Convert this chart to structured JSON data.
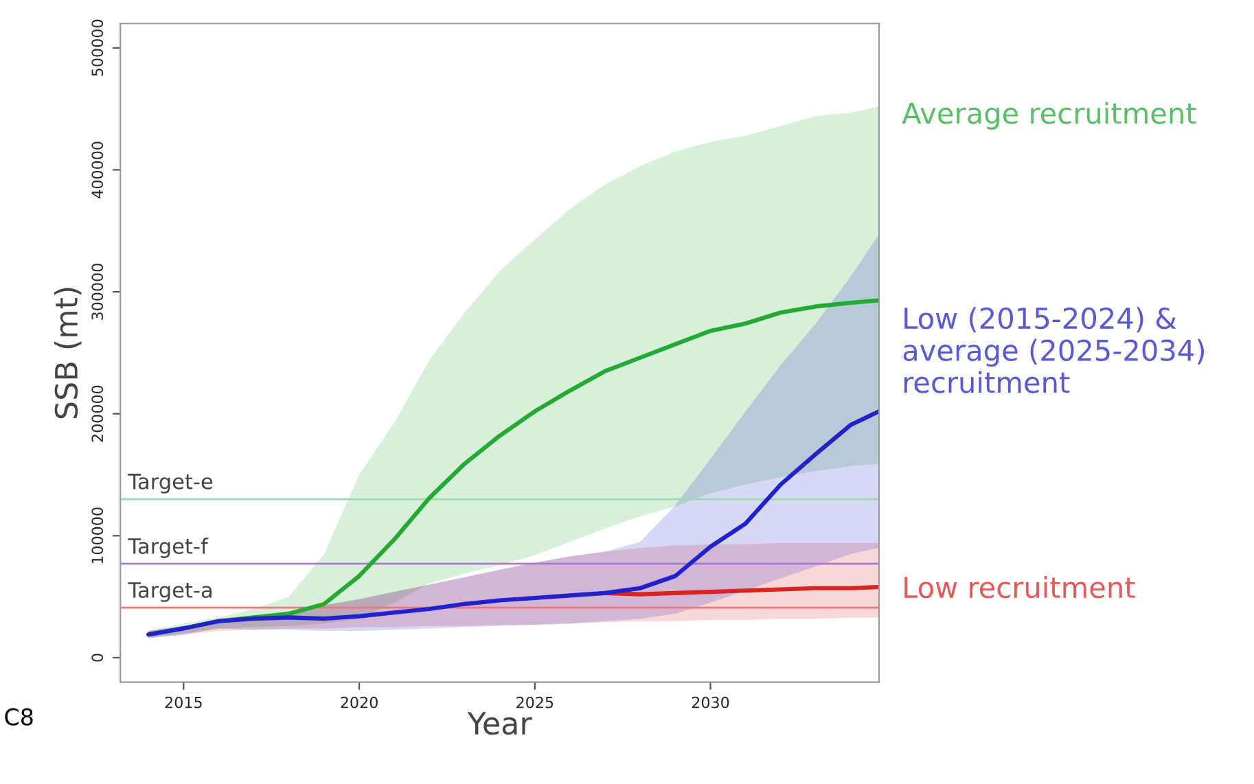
{
  "chart_data": {
    "type": "line",
    "xlabel": "Year",
    "ylabel": "SSB (mt)",
    "x": [
      2014,
      2015,
      2016,
      2017,
      2018,
      2019,
      2020,
      2021,
      2022,
      2023,
      2024,
      2025,
      2026,
      2027,
      2028,
      2029,
      2030,
      2031,
      2032,
      2033,
      2034,
      2034.8
    ],
    "xlim": [
      2013.2,
      2034.8
    ],
    "xticks": [
      2015,
      2020,
      2025,
      2030
    ],
    "ylim": [
      -20000,
      520000
    ],
    "yticks": [
      0,
      100000,
      200000,
      300000,
      400000,
      500000
    ],
    "grid": false,
    "legend": false,
    "line_style": "solid",
    "marker": "none",
    "series": [
      {
        "name": "Average recruitment",
        "color": "#22aa33",
        "values": [
          19000,
          24000,
          30000,
          33000,
          36000,
          44000,
          67000,
          97000,
          131000,
          159000,
          182000,
          202000,
          219000,
          235000,
          246000,
          257000,
          268000,
          274000,
          283000,
          288000,
          291000,
          293000
        ],
        "lower": [
          17000,
          20000,
          24000,
          25000,
          26000,
          28000,
          32000,
          45000,
          61000,
          69000,
          76000,
          84000,
          95000,
          106000,
          116000,
          124000,
          135000,
          142000,
          148000,
          153000,
          157000,
          159000
        ],
        "upper": [
          22000,
          28000,
          33000,
          40000,
          50000,
          85000,
          150000,
          193000,
          244000,
          283000,
          317000,
          343000,
          368000,
          388000,
          403000,
          415000,
          423000,
          428000,
          436000,
          444000,
          447000,
          452000
        ]
      },
      {
        "name": "Low recruitment",
        "color": "#dd2222",
        "values": [
          null,
          null,
          null,
          null,
          null,
          null,
          null,
          null,
          null,
          null,
          null,
          null,
          null,
          53000,
          52000,
          53000,
          54000,
          55000,
          56000,
          57000,
          57000,
          58000
        ],
        "lower": [
          16000,
          19000,
          22000,
          23000,
          24000,
          24000,
          25000,
          25000,
          26000,
          26000,
          27000,
          27000,
          28000,
          29000,
          30000,
          30000,
          31000,
          31000,
          32000,
          32000,
          33000,
          33000
        ],
        "upper": [
          22000,
          26000,
          30000,
          34000,
          38000,
          43000,
          48000,
          54000,
          60000,
          66000,
          72000,
          78000,
          83000,
          87000,
          90000,
          92000,
          93000,
          93000,
          94000,
          94000,
          94000,
          94000
        ]
      },
      {
        "name": "Low (2015-2024) & average (2025-2034) recruitment",
        "color": "#2222cc",
        "values": [
          19000,
          24000,
          30000,
          32000,
          33000,
          32000,
          34000,
          37000,
          40000,
          44000,
          47000,
          49000,
          51000,
          53000,
          57000,
          67000,
          91000,
          110000,
          142000,
          167000,
          191000,
          202000
        ],
        "lower": [
          16000,
          19000,
          24000,
          23000,
          23000,
          22000,
          22000,
          23000,
          24000,
          25000,
          26000,
          27000,
          28000,
          30000,
          32000,
          36000,
          45000,
          55000,
          65000,
          75000,
          85000,
          90000
        ],
        "upper": [
          22000,
          26000,
          30000,
          34000,
          38000,
          43000,
          48000,
          54000,
          60000,
          66000,
          72000,
          78000,
          83000,
          87000,
          95000,
          125000,
          163000,
          202000,
          240000,
          274000,
          313000,
          347000
        ]
      }
    ],
    "ref_lines": [
      {
        "axis": "y",
        "value": 130000,
        "label": "Target-e",
        "color": "#99ddaa"
      },
      {
        "axis": "y",
        "value": 77000,
        "label": "Target-f",
        "color": "#aa77cc"
      },
      {
        "axis": "y",
        "value": 41000,
        "label": "Target-a",
        "color": "#ee7777"
      }
    ],
    "annotations": [
      "C8"
    ]
  }
}
